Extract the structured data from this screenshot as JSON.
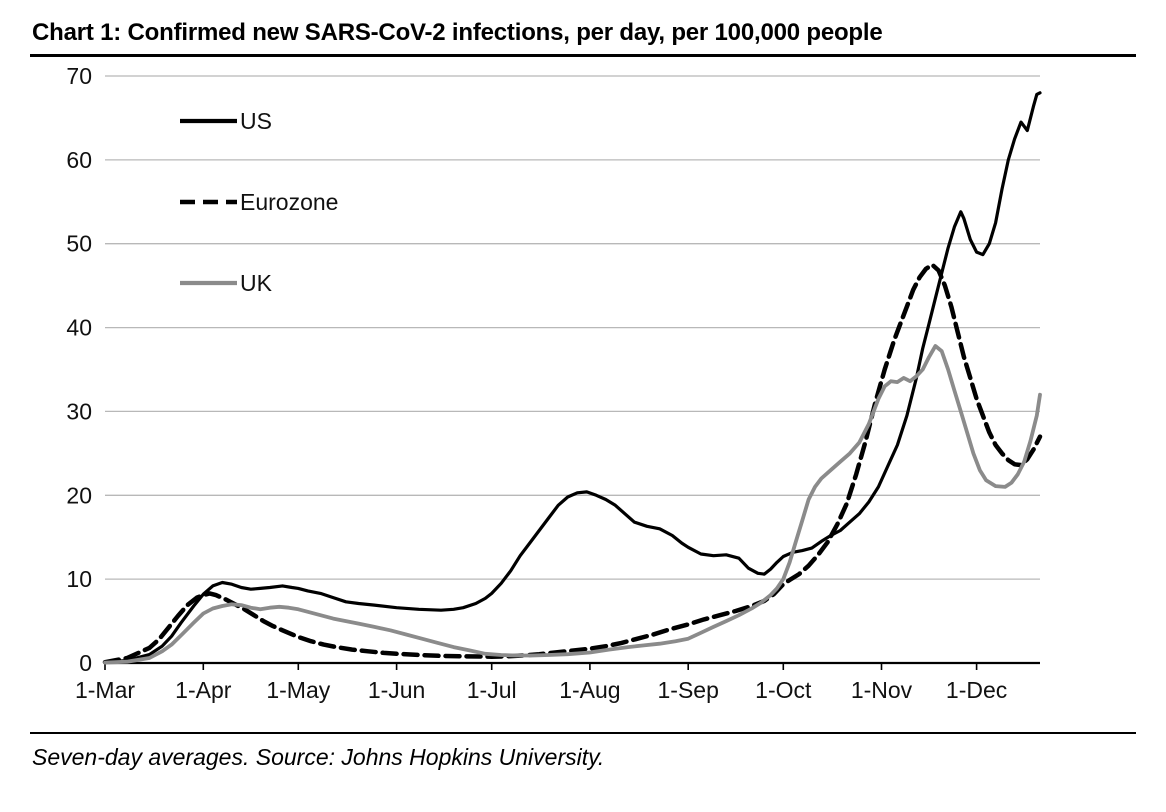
{
  "header": {
    "title": "Chart 1: Confirmed new SARS-CoV-2 infections, per day, per 100,000 people"
  },
  "footer": {
    "note": "Seven-day averages. Source: Johns Hopkins University."
  },
  "chart_data": {
    "type": "line",
    "title": "Chart 1: Confirmed new SARS-CoV-2 infections, per day, per 100,000 people",
    "note": "Seven-day averages. Source: Johns Hopkins University.",
    "x_unit": "days since 1 March 2020",
    "xlim": [
      0,
      295
    ],
    "ylim": [
      0,
      70
    ],
    "y_ticks": [
      0,
      10,
      20,
      30,
      40,
      50,
      60,
      70
    ],
    "x_ticks": [
      {
        "pos": 0,
        "label": "1-Mar"
      },
      {
        "pos": 31,
        "label": "1-Apr"
      },
      {
        "pos": 61,
        "label": "1-May"
      },
      {
        "pos": 92,
        "label": "1-Jun"
      },
      {
        "pos": 122,
        "label": "1-Jul"
      },
      {
        "pos": 153,
        "label": "1-Aug"
      },
      {
        "pos": 184,
        "label": "1-Sep"
      },
      {
        "pos": 214,
        "label": "1-Oct"
      },
      {
        "pos": 245,
        "label": "1-Nov"
      },
      {
        "pos": 275,
        "label": "1-Dec"
      }
    ],
    "grid": true,
    "gridline_color": "#b8b8b8",
    "axis_color": "#000000",
    "legend_position": "inside-top-left",
    "series": [
      {
        "name": "US",
        "color": "#000000",
        "dash": null,
        "width": 3.2,
        "x": [
          0,
          7,
          14,
          18,
          21,
          24,
          28,
          31,
          34,
          37,
          40,
          43,
          46,
          49,
          52,
          56,
          59,
          61,
          64,
          68,
          72,
          76,
          80,
          85,
          92,
          99,
          106,
          110,
          113,
          117,
          120,
          122,
          125,
          128,
          131,
          134,
          137,
          140,
          143,
          146,
          149,
          152,
          155,
          158,
          161,
          164,
          167,
          171,
          175,
          179,
          182,
          184,
          188,
          192,
          196,
          200,
          203,
          206,
          208,
          210,
          212,
          214,
          217,
          220,
          223,
          226,
          229,
          232,
          235,
          238,
          241,
          244,
          247,
          250,
          253,
          256,
          258,
          260,
          262,
          264,
          266,
          268,
          270,
          271,
          273,
          275,
          277,
          279,
          281,
          283,
          285,
          287,
          289,
          291,
          293,
          294,
          295
        ],
        "values": [
          0.1,
          0.3,
          1.0,
          2.0,
          3.2,
          4.8,
          6.8,
          8.2,
          9.2,
          9.6,
          9.4,
          9.0,
          8.8,
          8.9,
          9.0,
          9.2,
          9.0,
          8.9,
          8.6,
          8.3,
          7.8,
          7.3,
          7.1,
          6.9,
          6.6,
          6.4,
          6.3,
          6.4,
          6.6,
          7.1,
          7.7,
          8.3,
          9.5,
          11.0,
          12.8,
          14.3,
          15.8,
          17.3,
          18.8,
          19.8,
          20.3,
          20.4,
          20.0,
          19.5,
          18.8,
          17.8,
          16.8,
          16.3,
          16.0,
          15.2,
          14.3,
          13.8,
          13.0,
          12.8,
          12.9,
          12.5,
          11.3,
          10.7,
          10.6,
          11.2,
          12.0,
          12.7,
          13.2,
          13.4,
          13.7,
          14.5,
          15.2,
          15.8,
          16.8,
          17.8,
          19.2,
          21.0,
          23.5,
          26.0,
          29.5,
          34.0,
          37.5,
          40.5,
          43.5,
          46.5,
          49.5,
          52.0,
          53.8,
          53.0,
          50.5,
          49.0,
          48.7,
          50.0,
          52.5,
          56.5,
          60.0,
          62.5,
          64.5,
          63.5,
          66.5,
          67.8,
          68.0
        ]
      },
      {
        "name": "Eurozone",
        "color": "#000000",
        "dash": [
          14,
          7
        ],
        "width": 4.5,
        "x": [
          0,
          7,
          14,
          17,
          20,
          23,
          26,
          29,
          31,
          33,
          35,
          38,
          41,
          44,
          47,
          50,
          53,
          56,
          61,
          65,
          69,
          73,
          78,
          83,
          88,
          92,
          99,
          106,
          113,
          122,
          127,
          132,
          137,
          142,
          147,
          153,
          158,
          163,
          168,
          173,
          178,
          184,
          189,
          194,
          199,
          204,
          208,
          211,
          214,
          216,
          219,
          222,
          225,
          228,
          231,
          234,
          237,
          240,
          243,
          246,
          249,
          251,
          253,
          255,
          257,
          259,
          261,
          263,
          265,
          267,
          269,
          271,
          273,
          275,
          277,
          279,
          281,
          283,
          285,
          287,
          289,
          291,
          293,
          295
        ],
        "values": [
          0.1,
          0.6,
          1.8,
          2.8,
          4.2,
          5.6,
          6.9,
          7.8,
          8.1,
          8.3,
          8.1,
          7.6,
          7.0,
          6.4,
          5.7,
          5.0,
          4.4,
          3.9,
          3.1,
          2.6,
          2.2,
          1.9,
          1.6,
          1.4,
          1.2,
          1.1,
          0.95,
          0.85,
          0.8,
          0.75,
          0.8,
          0.9,
          1.05,
          1.25,
          1.45,
          1.7,
          2.0,
          2.4,
          2.9,
          3.4,
          4.0,
          4.6,
          5.2,
          5.7,
          6.2,
          6.8,
          7.4,
          8.2,
          9.4,
          9.9,
          10.6,
          11.6,
          12.9,
          14.4,
          16.5,
          19.0,
          22.5,
          26.5,
          31.0,
          35.0,
          38.5,
          40.5,
          42.5,
          44.5,
          46.0,
          47.0,
          47.5,
          46.8,
          45.0,
          42.5,
          39.5,
          36.5,
          34.0,
          31.5,
          29.5,
          27.5,
          26.0,
          25.0,
          24.2,
          23.7,
          23.6,
          24.3,
          25.5,
          27.0
        ]
      },
      {
        "name": "UK",
        "color": "#8b8b8b",
        "dash": null,
        "width": 3.8,
        "x": [
          0,
          7,
          14,
          18,
          21,
          24,
          28,
          31,
          34,
          37,
          40,
          43,
          46,
          49,
          52,
          55,
          58,
          61,
          64,
          68,
          72,
          76,
          80,
          85,
          90,
          95,
          100,
          105,
          110,
          115,
          120,
          125,
          130,
          135,
          140,
          146,
          153,
          159,
          165,
          170,
          175,
          180,
          184,
          188,
          192,
          196,
          200,
          204,
          207,
          210,
          212,
          214,
          216,
          218,
          220,
          222,
          224,
          226,
          229,
          232,
          235,
          238,
          241,
          244,
          246,
          248,
          250,
          252,
          254,
          256,
          258,
          260,
          262,
          264,
          266,
          268,
          270,
          272,
          274,
          276,
          278,
          281,
          284,
          286,
          288,
          290,
          292,
          294,
          295
        ],
        "values": [
          0.05,
          0.15,
          0.6,
          1.4,
          2.2,
          3.3,
          4.8,
          5.9,
          6.5,
          6.8,
          7.0,
          6.9,
          6.6,
          6.4,
          6.6,
          6.7,
          6.6,
          6.4,
          6.1,
          5.7,
          5.3,
          5.0,
          4.7,
          4.3,
          3.9,
          3.4,
          2.9,
          2.4,
          1.9,
          1.5,
          1.1,
          0.95,
          0.9,
          0.9,
          0.95,
          1.05,
          1.25,
          1.6,
          1.9,
          2.1,
          2.3,
          2.6,
          2.9,
          3.6,
          4.3,
          5.0,
          5.7,
          6.5,
          7.2,
          8.1,
          8.9,
          10.0,
          12.0,
          14.5,
          17.0,
          19.5,
          21.0,
          22.0,
          23.0,
          24.0,
          25.0,
          26.3,
          28.5,
          31.5,
          33.0,
          33.6,
          33.5,
          34.0,
          33.6,
          34.2,
          35.0,
          36.5,
          37.8,
          37.2,
          35.0,
          32.5,
          30.0,
          27.5,
          25.0,
          23.0,
          21.8,
          21.1,
          21.0,
          21.5,
          22.5,
          24.0,
          26.5,
          29.5,
          32.0
        ]
      }
    ]
  }
}
